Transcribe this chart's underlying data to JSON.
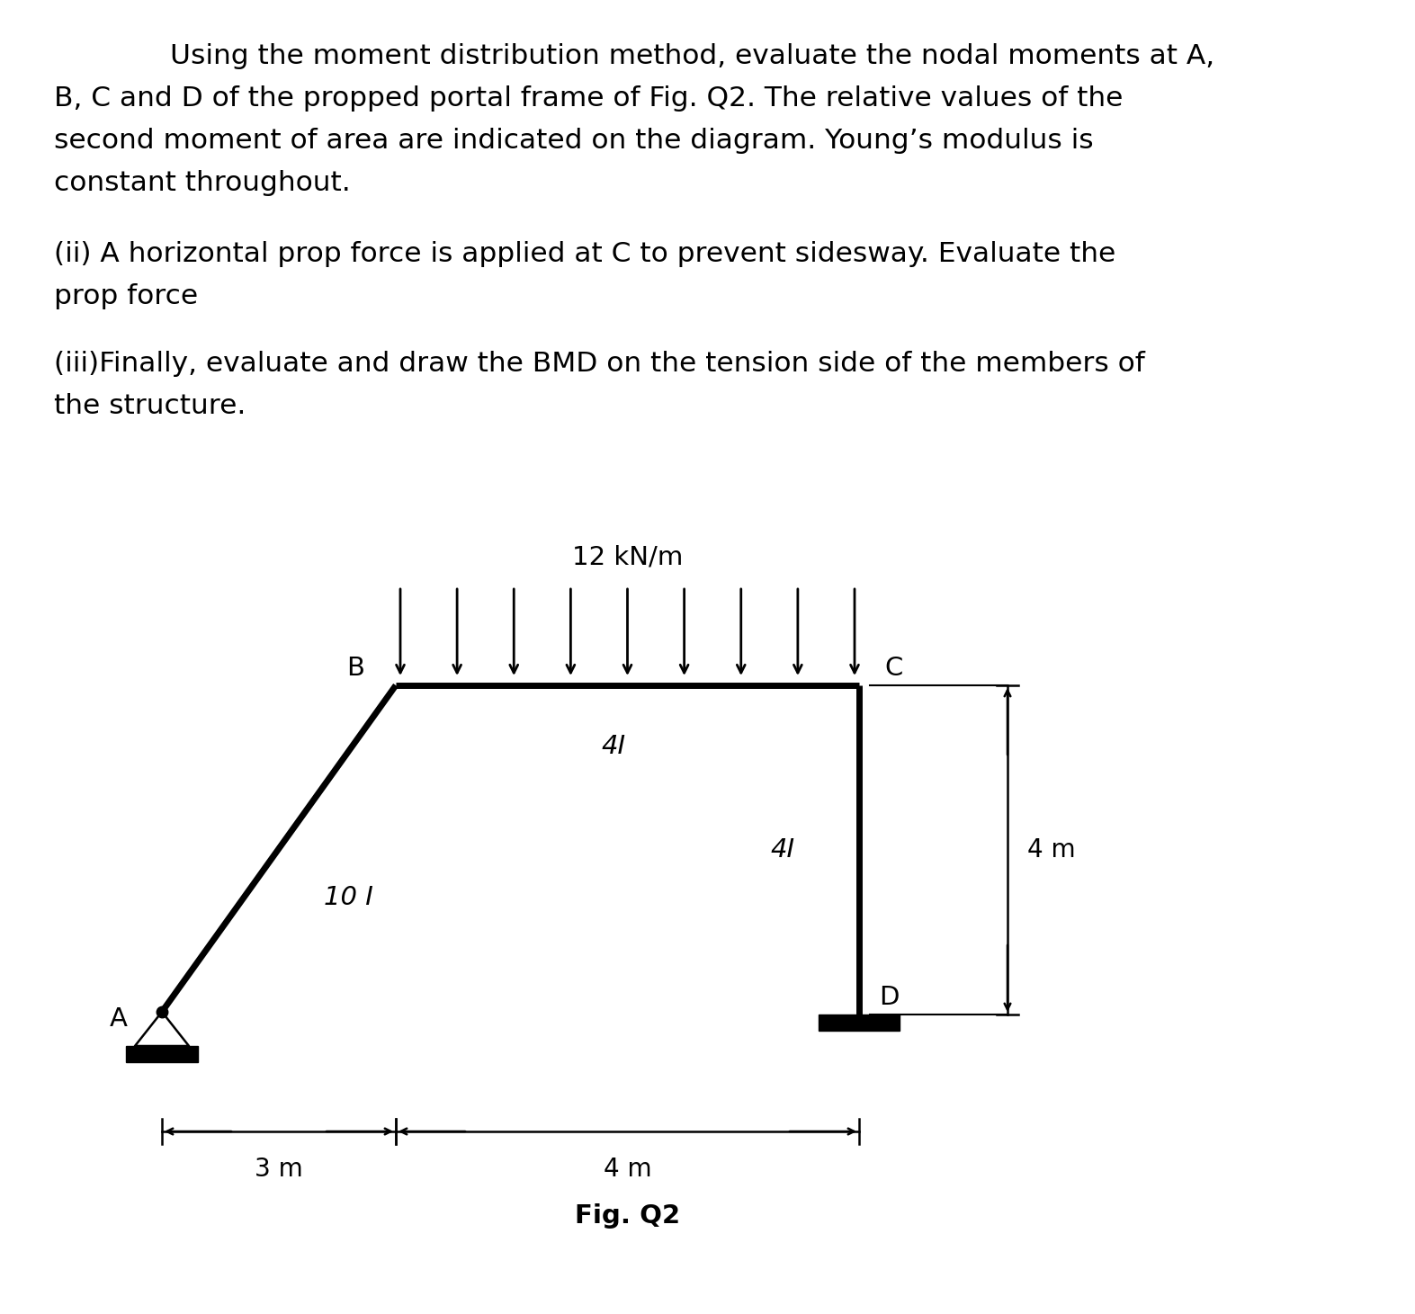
{
  "line_color": "#000000",
  "bg_color": "#ffffff",
  "lw_structure": 5.0,
  "lw_thin": 1.5,
  "lw_ground": 6.0,
  "label_A": "A",
  "label_B": "B",
  "label_C": "C",
  "label_D": "D",
  "label_4I_beam": "4I",
  "label_4I_col": "4I",
  "label_10I": "10 I",
  "load_label": "12 kN/m",
  "dim_3m": "3 m",
  "dim_4m_horiz": "4 m",
  "dim_4m_vert": "4 m",
  "fig_label": "Fig. Q2",
  "text_line1": "        Using the moment distribution method, evaluate the nodal moments at A,",
  "text_line2": "B, C and D of the propped portal frame of Fig. Q2. The relative values of the",
  "text_line3": "second moment of area are indicated on the diagram. Young’s modulus is",
  "text_line4": "constant throughout.",
  "text_line5": "(ii) A horizontal prop force is applied at C to prevent sidesway. Evaluate the",
  "text_line6": "prop force",
  "text_line7": "(iii)Finally, evaluate and draw the BMD on the tension side of the members of",
  "text_line8": "the structure."
}
